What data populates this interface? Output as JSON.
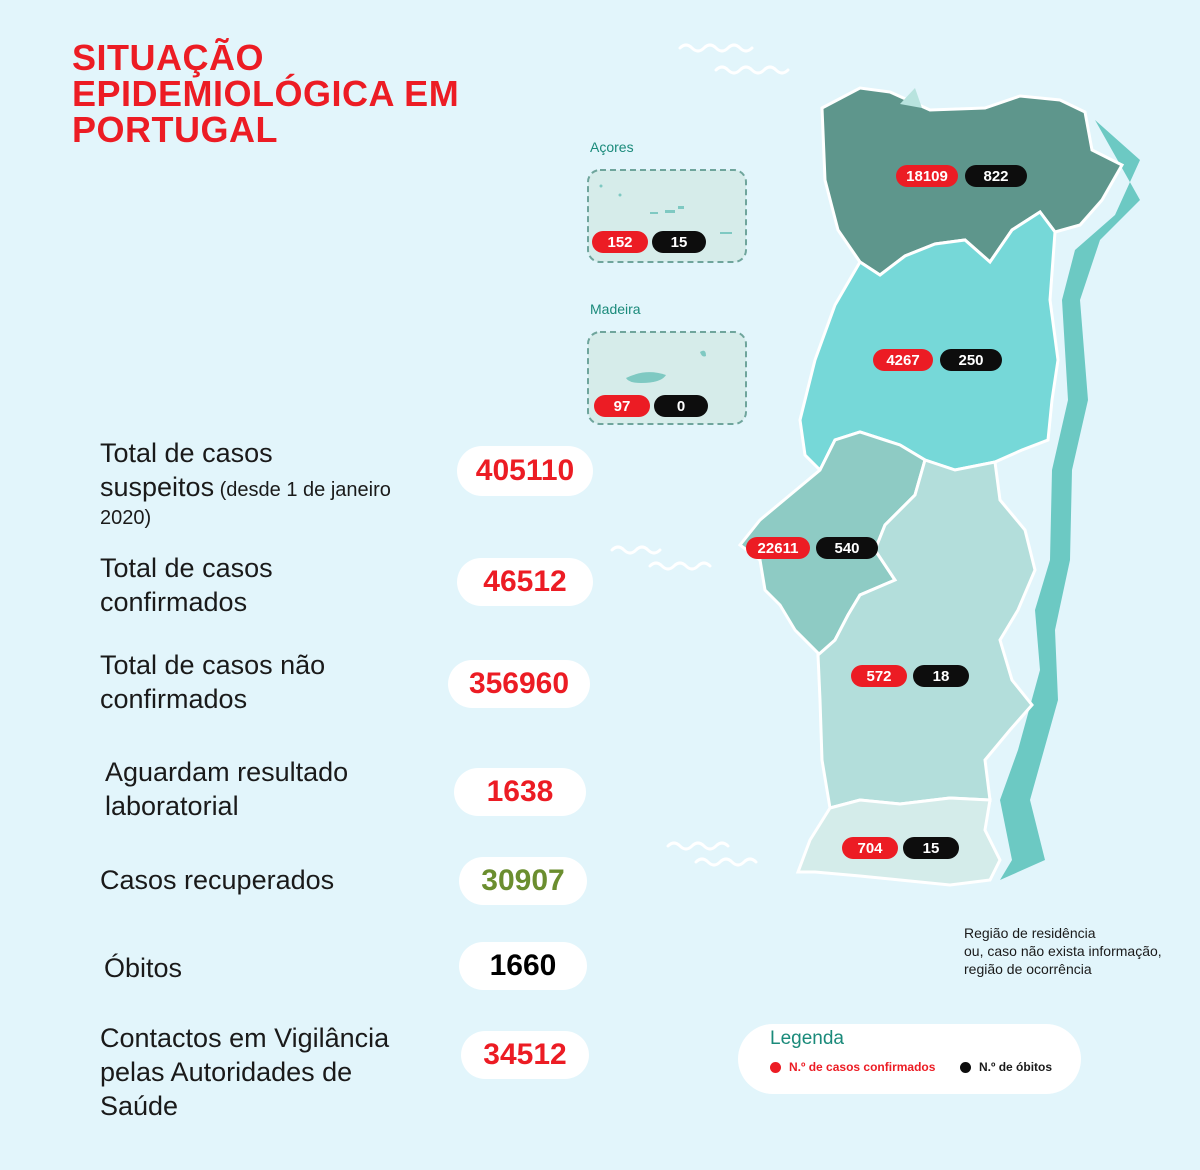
{
  "title": {
    "line1": "SITUAÇÃO",
    "line2": "EPIDEMIOLÓGICA EM",
    "line3": "PORTUGAL"
  },
  "stats": {
    "suspeitos": {
      "label1": "Total de casos",
      "label2": "suspeitos",
      "label2_small": " (desde 1 de janeiro",
      "label3": "2020)",
      "value": "405110"
    },
    "confirmados": {
      "label1": "Total de casos",
      "label2": "confirmados",
      "value": "46512"
    },
    "nao_confirmados": {
      "label1": "Total de casos não",
      "label2": "confirmados",
      "value": "356960"
    },
    "aguardam": {
      "label1": "Aguardam resultado",
      "label2": "laboratorial",
      "value": "1638"
    },
    "recuperados": {
      "label1": "Casos recuperados",
      "value": "30907"
    },
    "obitos": {
      "label1": "Óbitos",
      "value": "1660"
    },
    "contactos": {
      "label1": "Contactos em Vigilância",
      "label2": "pelas Autoridades de",
      "label3": "Saúde",
      "value": "34512"
    }
  },
  "regions": {
    "norte": {
      "cases": "18109",
      "deaths": "822"
    },
    "centro": {
      "cases": "4267",
      "deaths": "250"
    },
    "lisboa": {
      "cases": "22611",
      "deaths": "540"
    },
    "alentejo": {
      "cases": "572",
      "deaths": "18"
    },
    "algarve": {
      "cases": "704",
      "deaths": "15"
    },
    "acores": {
      "label": "Açores",
      "cases": "152",
      "deaths": "15"
    },
    "madeira": {
      "label": "Madeira",
      "cases": "97",
      "deaths": "0"
    }
  },
  "note": {
    "line1": "Região de residência",
    "line2": "ou, caso não exista informação,",
    "line3": "região de ocorrência"
  },
  "legend": {
    "title": "Legenda",
    "cases_label": "N.º de casos confirmados",
    "deaths_label": "N.º de óbitos"
  },
  "colors": {
    "background": "#e2f5fb",
    "accent_red": "#ec1c24",
    "recovered_green": "#6b8e2f",
    "norte": "#5e968c",
    "centro": "#76d8d8",
    "lisboa": "#8ecbc4",
    "alentejo": "#b3dedb",
    "algarve": "#d4ecea"
  }
}
